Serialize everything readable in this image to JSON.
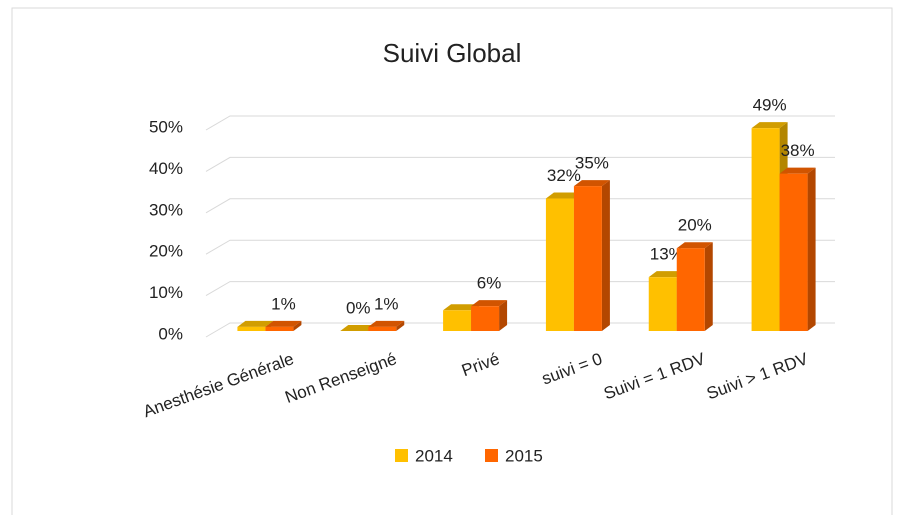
{
  "chart_data": {
    "type": "bar3d",
    "title": "Suivi Global",
    "categories": [
      "Anesthésie Générale",
      "Non Renseigné",
      "Privé",
      "suivi = 0",
      "Suivi = 1 RDV",
      "Suivi > 1 RDV"
    ],
    "series": [
      {
        "name": "2014",
        "color": "#FFC000",
        "values": [
          1,
          0,
          5,
          32,
          13,
          49
        ],
        "value_labels": [
          null,
          "0%",
          null,
          "32%",
          "13%",
          "49%"
        ]
      },
      {
        "name": "2015",
        "color": "#FF6600",
        "values": [
          1,
          1,
          6,
          35,
          20,
          38
        ],
        "value_labels": [
          "1%",
          "1%",
          "6%",
          "35%",
          "20%",
          "38%"
        ]
      }
    ],
    "ylim": [
      0,
      50
    ],
    "yticks": [
      {
        "value": 0,
        "label": "0%"
      },
      {
        "value": 10,
        "label": "10%"
      },
      {
        "value": 20,
        "label": "20%"
      },
      {
        "value": 30,
        "label": "30%"
      },
      {
        "value": 40,
        "label": "40%"
      },
      {
        "value": 50,
        "label": "50%"
      }
    ],
    "grid": true,
    "legend": "bottom"
  }
}
